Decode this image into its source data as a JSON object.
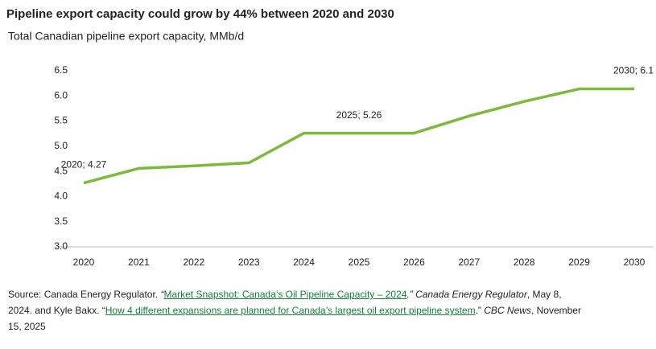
{
  "chart_data": {
    "type": "line",
    "title": "Pipeline export capacity could grow by 44% between 2020 and 2030",
    "subtitle": "Total Canadian pipeline export capacity, MMb/d",
    "categories": [
      "2020",
      "2021",
      "2022",
      "2023",
      "2024",
      "2025",
      "2026",
      "2027",
      "2028",
      "2029",
      "2030"
    ],
    "values": [
      4.27,
      4.56,
      4.61,
      4.67,
      5.26,
      5.26,
      5.26,
      5.6,
      5.89,
      6.14,
      6.14
    ],
    "value_labels": [
      "2020; 4.27",
      null,
      null,
      null,
      null,
      "2025; 5.26",
      null,
      null,
      null,
      null,
      "2030; 6.1"
    ],
    "color": "#7db83f",
    "ylim": [
      3,
      6.5
    ],
    "yticks": [
      {
        "value": 3,
        "label": "3.0"
      },
      3.5,
      {
        "value": 4,
        "label": "4.0"
      },
      4.5,
      {
        "value": 5,
        "label": "5.0"
      },
      5.5,
      {
        "value": 6,
        "label": "6.0"
      },
      6.5
    ],
    "grid": false,
    "source": [
      {
        "text": "Source: Canada Energy Regulator. ",
        "style": "plain"
      },
      {
        "text": "“",
        "style": "italic"
      },
      {
        "text": "Market Snapshot: Canada’s Oil Pipeline Capacity – 2024",
        "style": "link"
      },
      {
        "text": ".” Canada Energy Regulator",
        "style": "italic"
      },
      {
        "text": ", May 8, 2024. and Kyle Bakx. “",
        "style": "plain"
      },
      {
        "text": "How 4 different expansions are planned for Canada’s largest oil export pipeline system",
        "style": "link"
      },
      {
        "text": ".” ",
        "style": "plain"
      },
      {
        "text": "CBC News",
        "style": "italic"
      },
      {
        "text": ", November 15, 2025",
        "style": "plain"
      }
    ]
  }
}
